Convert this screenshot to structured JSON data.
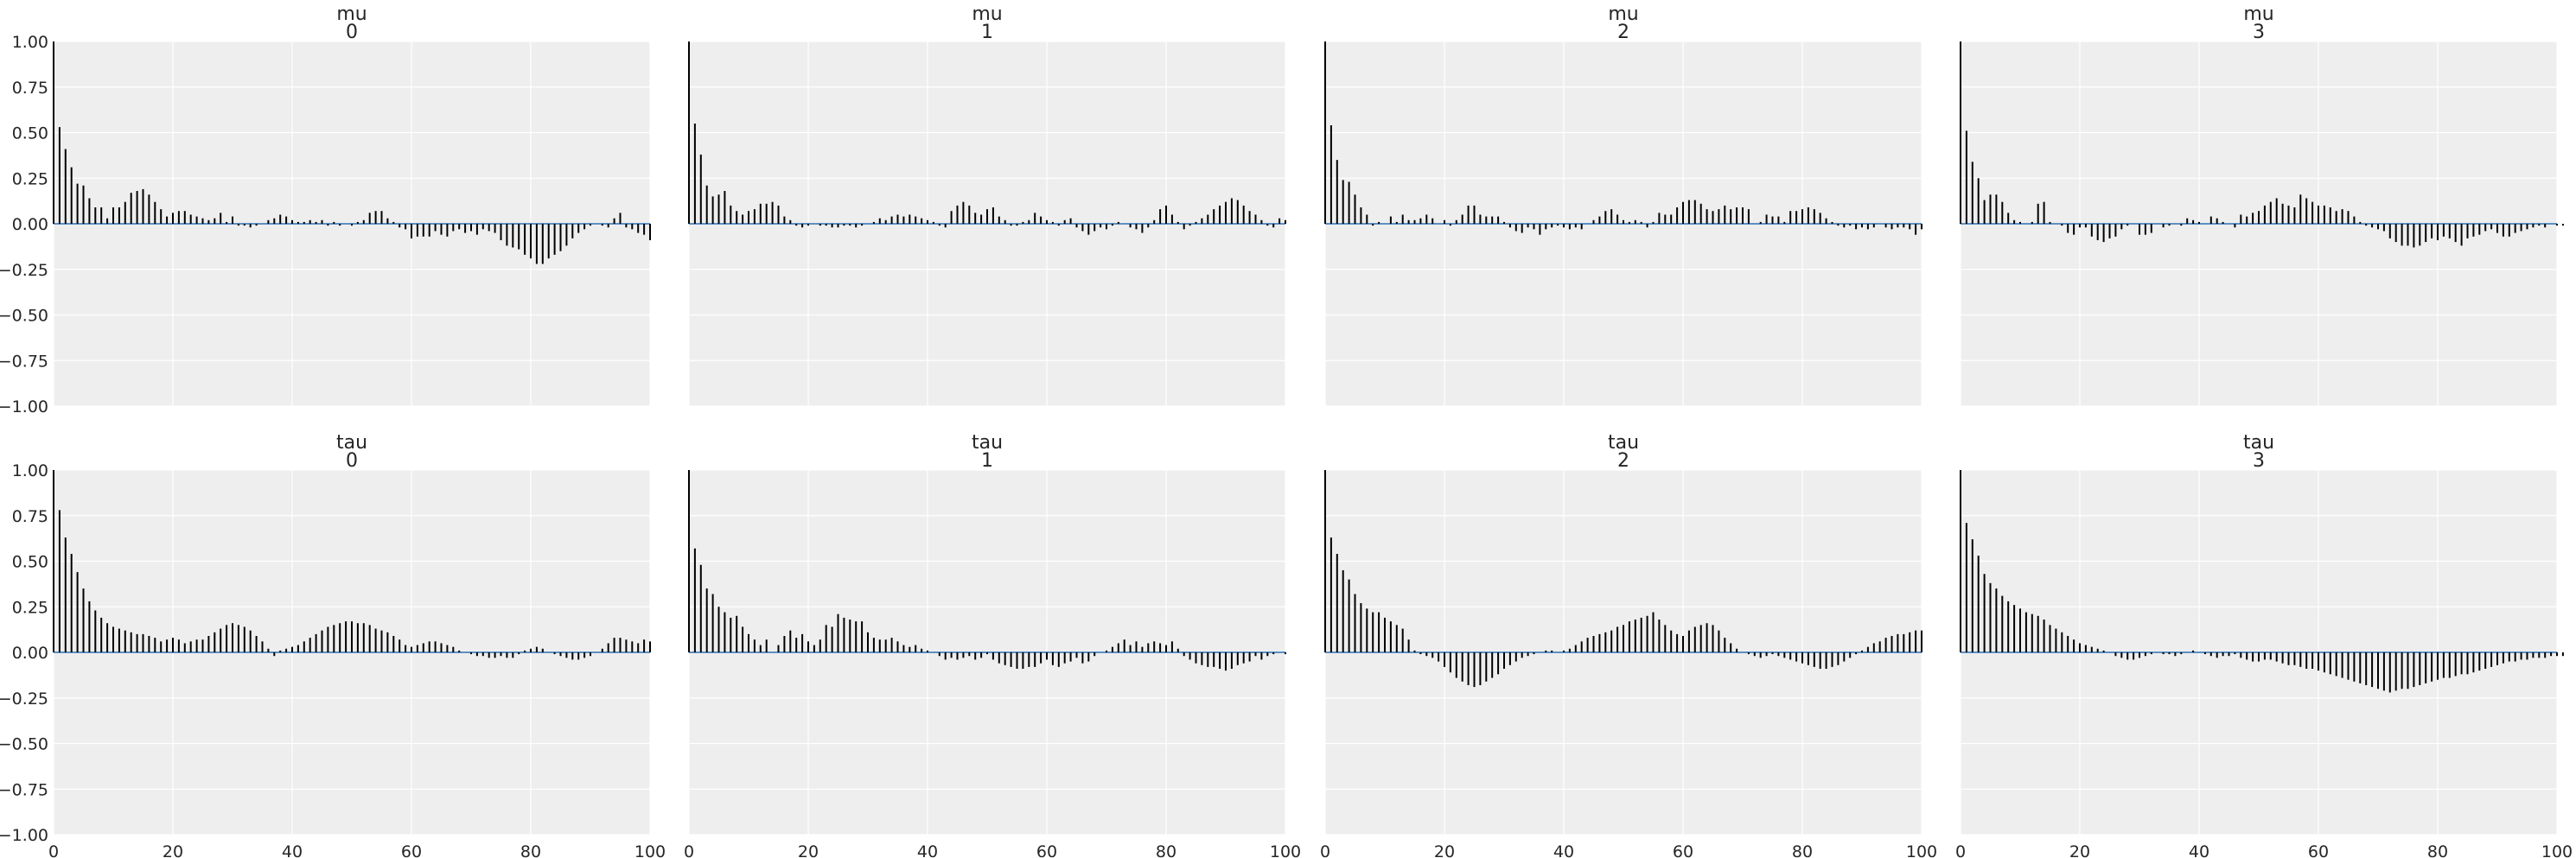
{
  "chart_data": [
    {
      "type": "bar",
      "title_line1": "mu",
      "title_line2": "0",
      "ylim": [
        -1,
        1
      ],
      "xlim": [
        0,
        100
      ],
      "xticks": [
        "0",
        "20",
        "40",
        "60",
        "80",
        "100"
      ],
      "yticks": [
        "1.00",
        "0.75",
        "0.50",
        "0.25",
        "0.00",
        "−0.25",
        "−0.50",
        "−0.75",
        "−1.00"
      ],
      "values": [
        1.0,
        0.53,
        0.41,
        0.31,
        0.22,
        0.21,
        0.14,
        0.09,
        0.09,
        0.03,
        0.09,
        0.09,
        0.12,
        0.17,
        0.18,
        0.19,
        0.16,
        0.12,
        0.08,
        0.04,
        0.06,
        0.07,
        0.07,
        0.05,
        0.04,
        0.03,
        0.02,
        0.03,
        0.06,
        0.01,
        0.04,
        -0.01,
        -0.01,
        -0.02,
        -0.01,
        0.0,
        0.02,
        0.03,
        0.05,
        0.04,
        0.02,
        0.01,
        0.01,
        0.02,
        0.01,
        0.02,
        -0.01,
        0.01,
        -0.01,
        0.0,
        -0.01,
        0.01,
        0.02,
        0.06,
        0.07,
        0.07,
        0.03,
        0.01,
        -0.02,
        -0.03,
        -0.08,
        -0.07,
        -0.07,
        -0.07,
        -0.04,
        -0.06,
        -0.07,
        -0.04,
        -0.03,
        -0.05,
        -0.04,
        -0.06,
        -0.03,
        -0.04,
        -0.05,
        -0.09,
        -0.12,
        -0.13,
        -0.14,
        -0.17,
        -0.19,
        -0.22,
        -0.22,
        -0.19,
        -0.17,
        -0.15,
        -0.12,
        -0.08,
        -0.05,
        -0.03,
        -0.01,
        0.0,
        -0.01,
        -0.02,
        0.03,
        0.06,
        -0.02,
        -0.03,
        -0.05,
        -0.06,
        -0.09
      ]
    },
    {
      "type": "bar",
      "title_line1": "mu",
      "title_line2": "1",
      "ylim": [
        -1,
        1
      ],
      "xlim": [
        0,
        100
      ],
      "xticks": [
        "0",
        "20",
        "40",
        "60",
        "80",
        "100"
      ],
      "yticks": [
        "1.00",
        "0.75",
        "0.50",
        "0.25",
        "0.00",
        "−0.25",
        "−0.50",
        "−0.75",
        "−1.00"
      ],
      "values": [
        1.0,
        0.55,
        0.38,
        0.21,
        0.15,
        0.16,
        0.18,
        0.1,
        0.07,
        0.05,
        0.07,
        0.08,
        0.11,
        0.11,
        0.12,
        0.1,
        0.04,
        0.02,
        -0.01,
        -0.02,
        -0.01,
        0.0,
        -0.01,
        -0.01,
        -0.02,
        -0.02,
        -0.01,
        -0.01,
        -0.02,
        -0.01,
        0.0,
        0.01,
        0.03,
        0.02,
        0.04,
        0.05,
        0.04,
        0.05,
        0.04,
        0.03,
        0.02,
        0.01,
        -0.01,
        -0.02,
        0.07,
        0.1,
        0.12,
        0.1,
        0.06,
        0.05,
        0.08,
        0.09,
        0.04,
        0.02,
        -0.01,
        -0.01,
        0.01,
        0.02,
        0.06,
        0.04,
        0.02,
        0.01,
        -0.01,
        0.02,
        0.03,
        -0.02,
        -0.04,
        -0.06,
        -0.04,
        -0.02,
        -0.03,
        -0.01,
        0.01,
        0.0,
        -0.02,
        -0.03,
        -0.05,
        -0.02,
        0.02,
        0.08,
        0.1,
        0.05,
        0.01,
        -0.03,
        -0.01,
        0.01,
        0.03,
        0.05,
        0.08,
        0.1,
        0.12,
        0.14,
        0.13,
        0.1,
        0.07,
        0.05,
        0.02,
        -0.01,
        -0.02,
        0.03,
        0.02
      ]
    },
    {
      "type": "bar",
      "title_line1": "mu",
      "title_line2": "2",
      "ylim": [
        -1,
        1
      ],
      "xlim": [
        0,
        100
      ],
      "xticks": [
        "0",
        "20",
        "40",
        "60",
        "80",
        "100"
      ],
      "yticks": [
        "1.00",
        "0.75",
        "0.50",
        "0.25",
        "0.00",
        "−0.25",
        "−0.50",
        "−0.75",
        "−1.00"
      ],
      "values": [
        1.0,
        0.54,
        0.35,
        0.24,
        0.23,
        0.16,
        0.09,
        0.05,
        -0.01,
        0.01,
        0.0,
        0.04,
        0.01,
        0.05,
        0.02,
        0.02,
        0.03,
        0.05,
        0.03,
        0.0,
        0.02,
        -0.01,
        0.02,
        0.05,
        0.1,
        0.1,
        0.05,
        0.04,
        0.04,
        0.04,
        0.01,
        -0.02,
        -0.04,
        -0.05,
        -0.02,
        -0.03,
        -0.06,
        -0.03,
        -0.02,
        -0.01,
        -0.02,
        -0.03,
        -0.02,
        -0.03,
        0.0,
        0.02,
        0.04,
        0.07,
        0.08,
        0.05,
        0.02,
        0.01,
        0.02,
        0.01,
        -0.02,
        0.01,
        0.06,
        0.05,
        0.05,
        0.09,
        0.12,
        0.13,
        0.13,
        0.11,
        0.08,
        0.07,
        0.08,
        0.1,
        0.08,
        0.09,
        0.09,
        0.08,
        0.0,
        0.01,
        0.05,
        0.04,
        0.04,
        0.01,
        0.07,
        0.07,
        0.08,
        0.09,
        0.08,
        0.06,
        0.03,
        0.01,
        -0.01,
        -0.02,
        -0.01,
        -0.03,
        -0.02,
        -0.03,
        -0.02,
        0.0,
        -0.02,
        -0.03,
        -0.02,
        -0.02,
        -0.03,
        -0.06,
        -0.03
      ]
    },
    {
      "type": "bar",
      "title_line1": "mu",
      "title_line2": "3",
      "ylim": [
        -1,
        1
      ],
      "xlim": [
        0,
        100
      ],
      "xticks": [
        "0",
        "20",
        "40",
        "60",
        "80",
        "100"
      ],
      "yticks": [
        "1.00",
        "0.75",
        "0.50",
        "0.25",
        "0.00",
        "−0.25",
        "−0.50",
        "−0.75",
        "−1.00"
      ],
      "values": [
        1.0,
        0.51,
        0.34,
        0.25,
        0.13,
        0.16,
        0.16,
        0.12,
        0.06,
        0.02,
        0.01,
        0.0,
        0.01,
        0.11,
        0.12,
        0.01,
        0.0,
        -0.01,
        -0.05,
        -0.06,
        -0.02,
        -0.02,
        -0.07,
        -0.09,
        -0.1,
        -0.08,
        -0.07,
        -0.03,
        -0.01,
        0.0,
        -0.06,
        -0.06,
        -0.05,
        0.0,
        -0.02,
        -0.01,
        0.0,
        -0.01,
        0.03,
        0.02,
        0.01,
        0.0,
        0.04,
        0.03,
        0.01,
        0.0,
        -0.02,
        0.05,
        0.04,
        0.06,
        0.07,
        0.1,
        0.12,
        0.14,
        0.11,
        0.1,
        0.09,
        0.16,
        0.14,
        0.12,
        0.1,
        0.1,
        0.09,
        0.07,
        0.08,
        0.07,
        0.04,
        0.01,
        -0.01,
        -0.02,
        -0.03,
        -0.04,
        -0.08,
        -0.1,
        -0.12,
        -0.12,
        -0.13,
        -0.12,
        -0.1,
        -0.08,
        -0.09,
        -0.07,
        -0.08,
        -0.1,
        -0.12,
        -0.08,
        -0.07,
        -0.06,
        -0.04,
        -0.03,
        -0.05,
        -0.07,
        -0.07,
        -0.05,
        -0.04,
        -0.03,
        -0.02,
        -0.01,
        -0.02,
        0.0,
        -0.01,
        -0.01
      ]
    },
    {
      "type": "bar",
      "title_line1": "tau",
      "title_line2": "0",
      "ylim": [
        -1,
        1
      ],
      "xlim": [
        0,
        100
      ],
      "xticks": [
        "0",
        "20",
        "40",
        "60",
        "80",
        "100"
      ],
      "yticks": [
        "1.00",
        "0.75",
        "0.50",
        "0.25",
        "0.00",
        "−0.25",
        "−0.50",
        "−0.75",
        "−1.00"
      ],
      "values": [
        1.0,
        0.78,
        0.63,
        0.54,
        0.44,
        0.35,
        0.28,
        0.23,
        0.19,
        0.16,
        0.14,
        0.13,
        0.12,
        0.11,
        0.1,
        0.1,
        0.09,
        0.08,
        0.06,
        0.07,
        0.08,
        0.07,
        0.05,
        0.06,
        0.07,
        0.07,
        0.09,
        0.11,
        0.13,
        0.15,
        0.16,
        0.15,
        0.14,
        0.12,
        0.09,
        0.06,
        0.02,
        -0.02,
        0.01,
        0.02,
        0.03,
        0.04,
        0.06,
        0.08,
        0.1,
        0.12,
        0.14,
        0.15,
        0.16,
        0.17,
        0.17,
        0.16,
        0.16,
        0.15,
        0.13,
        0.12,
        0.11,
        0.09,
        0.07,
        0.04,
        0.03,
        0.04,
        0.05,
        0.06,
        0.06,
        0.05,
        0.04,
        0.03,
        0.01,
        0.0,
        -0.01,
        -0.02,
        -0.02,
        -0.03,
        -0.03,
        -0.02,
        -0.03,
        -0.03,
        -0.01,
        0.01,
        0.02,
        0.03,
        0.02,
        0.0,
        -0.01,
        -0.02,
        -0.03,
        -0.04,
        -0.04,
        -0.03,
        -0.02,
        0.0,
        0.02,
        0.05,
        0.08,
        0.08,
        0.07,
        0.06,
        0.05,
        0.07,
        0.06
      ]
    },
    {
      "type": "bar",
      "title_line1": "tau",
      "title_line2": "1",
      "ylim": [
        -1,
        1
      ],
      "xlim": [
        0,
        100
      ],
      "xticks": [
        "0",
        "20",
        "40",
        "60",
        "80",
        "100"
      ],
      "yticks": [
        "1.00",
        "0.75",
        "0.50",
        "0.25",
        "0.00",
        "−0.25",
        "−0.50",
        "−0.75",
        "−1.00"
      ],
      "values": [
        1.0,
        0.57,
        0.48,
        0.35,
        0.32,
        0.25,
        0.22,
        0.19,
        0.2,
        0.14,
        0.1,
        0.07,
        0.04,
        0.07,
        0.0,
        0.04,
        0.09,
        0.12,
        0.08,
        0.1,
        0.06,
        0.04,
        0.07,
        0.15,
        0.14,
        0.21,
        0.19,
        0.18,
        0.17,
        0.17,
        0.11,
        0.08,
        0.07,
        0.07,
        0.08,
        0.06,
        0.04,
        0.03,
        0.04,
        0.02,
        0.01,
        0.0,
        -0.02,
        -0.04,
        -0.03,
        -0.04,
        -0.03,
        -0.02,
        -0.04,
        -0.03,
        -0.01,
        -0.04,
        -0.06,
        -0.07,
        -0.08,
        -0.09,
        -0.09,
        -0.08,
        -0.08,
        -0.06,
        -0.04,
        -0.07,
        -0.08,
        -0.06,
        -0.05,
        -0.03,
        -0.06,
        -0.05,
        -0.02,
        0.0,
        0.01,
        0.03,
        0.05,
        0.07,
        0.04,
        0.06,
        0.03,
        0.05,
        0.06,
        0.05,
        0.04,
        0.06,
        0.02,
        -0.02,
        -0.04,
        -0.06,
        -0.07,
        -0.08,
        -0.08,
        -0.09,
        -0.1,
        -0.09,
        -0.07,
        -0.06,
        -0.05,
        -0.02,
        -0.04,
        -0.02,
        -0.01,
        0.0,
        -0.01
      ]
    },
    {
      "type": "bar",
      "title_line1": "tau",
      "title_line2": "2",
      "ylim": [
        -1,
        1
      ],
      "xlim": [
        0,
        100
      ],
      "xticks": [
        "0",
        "20",
        "40",
        "60",
        "80",
        "100"
      ],
      "yticks": [
        "1.00",
        "0.75",
        "0.50",
        "0.25",
        "0.00",
        "−0.25",
        "−0.50",
        "−0.75",
        "−1.00"
      ],
      "values": [
        1.0,
        0.63,
        0.54,
        0.45,
        0.4,
        0.32,
        0.27,
        0.24,
        0.22,
        0.22,
        0.19,
        0.17,
        0.15,
        0.13,
        0.07,
        0.01,
        -0.01,
        -0.02,
        -0.03,
        -0.05,
        -0.08,
        -0.11,
        -0.14,
        -0.16,
        -0.18,
        -0.19,
        -0.18,
        -0.16,
        -0.14,
        -0.12,
        -0.09,
        -0.07,
        -0.05,
        -0.03,
        -0.02,
        -0.01,
        0.0,
        0.01,
        0.01,
        0.0,
        0.01,
        0.02,
        0.04,
        0.06,
        0.08,
        0.09,
        0.1,
        0.11,
        0.12,
        0.14,
        0.15,
        0.17,
        0.18,
        0.19,
        0.2,
        0.22,
        0.18,
        0.15,
        0.12,
        0.1,
        0.09,
        0.12,
        0.14,
        0.15,
        0.16,
        0.15,
        0.12,
        0.08,
        0.05,
        0.02,
        0.0,
        -0.01,
        -0.02,
        -0.03,
        -0.02,
        -0.01,
        -0.02,
        -0.03,
        -0.04,
        -0.05,
        -0.06,
        -0.07,
        -0.08,
        -0.09,
        -0.09,
        -0.08,
        -0.07,
        -0.05,
        -0.03,
        -0.01,
        0.01,
        0.03,
        0.05,
        0.06,
        0.08,
        0.09,
        0.1,
        0.1,
        0.11,
        0.12,
        0.12
      ]
    },
    {
      "type": "bar",
      "title_line1": "tau",
      "title_line2": "3",
      "ylim": [
        -1,
        1
      ],
      "xlim": [
        0,
        100
      ],
      "xticks": [
        "0",
        "20",
        "40",
        "60",
        "80",
        "100"
      ],
      "yticks": [
        "1.00",
        "0.75",
        "0.50",
        "0.25",
        "0.00",
        "−0.25",
        "−0.50",
        "−0.75",
        "−1.00"
      ],
      "values": [
        1.0,
        0.71,
        0.62,
        0.53,
        0.43,
        0.38,
        0.35,
        0.31,
        0.28,
        0.26,
        0.24,
        0.22,
        0.21,
        0.2,
        0.18,
        0.15,
        0.13,
        0.11,
        0.09,
        0.07,
        0.05,
        0.04,
        0.03,
        0.02,
        0.01,
        0.0,
        -0.02,
        -0.03,
        -0.04,
        -0.04,
        -0.03,
        -0.02,
        -0.01,
        0.0,
        -0.01,
        -0.01,
        -0.02,
        -0.01,
        0.0,
        0.01,
        0.0,
        -0.01,
        -0.02,
        -0.03,
        -0.02,
        -0.02,
        -0.01,
        -0.03,
        -0.04,
        -0.05,
        -0.05,
        -0.04,
        -0.04,
        -0.05,
        -0.06,
        -0.07,
        -0.07,
        -0.08,
        -0.09,
        -0.09,
        -0.1,
        -0.11,
        -0.12,
        -0.13,
        -0.14,
        -0.15,
        -0.16,
        -0.17,
        -0.18,
        -0.19,
        -0.2,
        -0.21,
        -0.22,
        -0.21,
        -0.2,
        -0.2,
        -0.19,
        -0.18,
        -0.17,
        -0.16,
        -0.15,
        -0.14,
        -0.14,
        -0.13,
        -0.12,
        -0.12,
        -0.11,
        -0.1,
        -0.09,
        -0.08,
        -0.07,
        -0.06,
        -0.05,
        -0.05,
        -0.04,
        -0.04,
        -0.03,
        -0.03,
        -0.03,
        -0.02,
        -0.02,
        -0.02
      ]
    }
  ]
}
